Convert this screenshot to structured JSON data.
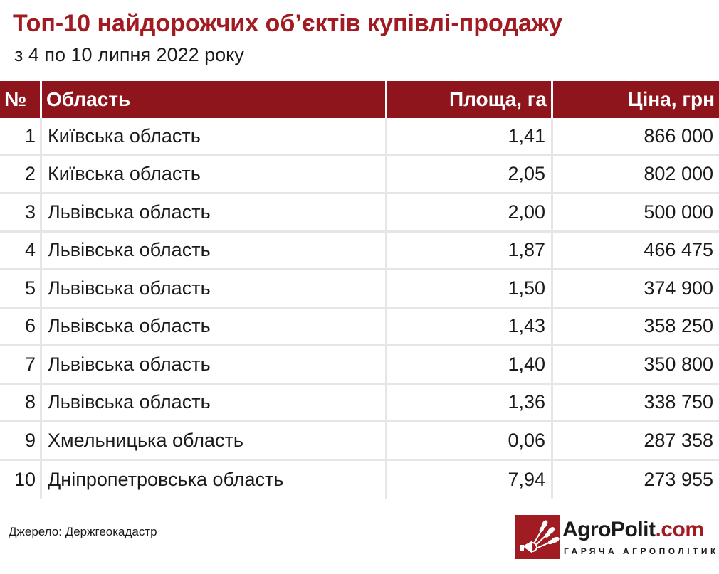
{
  "header": {
    "title": "Топ-10 найдорожчих об’єктів купівлі-продажу",
    "subtitle": "з 4 по 10 липня 2022 року"
  },
  "table": {
    "columns": [
      "№",
      "Область",
      "Площа, га",
      "Ціна, грн"
    ],
    "rows": [
      {
        "no": "1",
        "region": "Київська область",
        "area": "1,41",
        "price": "866 000"
      },
      {
        "no": "2",
        "region": "Київська область",
        "area": "2,05",
        "price": "802 000"
      },
      {
        "no": "3",
        "region": "Львівська область",
        "area": "2,00",
        "price": "500 000"
      },
      {
        "no": "4",
        "region": "Львівська область",
        "area": "1,87",
        "price": "466 475"
      },
      {
        "no": "5",
        "region": "Львівська область",
        "area": "1,50",
        "price": "374 900"
      },
      {
        "no": "6",
        "region": "Львівська область",
        "area": "1,43",
        "price": "358 250"
      },
      {
        "no": "7",
        "region": "Львівська область",
        "area": "1,40",
        "price": "350 800"
      },
      {
        "no": "8",
        "region": "Львівська область",
        "area": "1,36",
        "price": "338 750"
      },
      {
        "no": "9",
        "region": "Хмельницька область",
        "area": "0,06",
        "price": "287 358"
      },
      {
        "no": "10",
        "region": "Дніпропетровська область",
        "area": "7,94",
        "price": "273 955"
      }
    ]
  },
  "footer": {
    "source": "Джерело: Держгеокадастр",
    "logo_name_part1": "AgroPolit",
    "logo_name_part2": ".com",
    "logo_tagline": "ГАРЯЧА АГРОПОЛІТИКА"
  },
  "colors": {
    "accent": "#a11b22",
    "header_bg": "#8e151b",
    "grid": "#e6e6e6"
  }
}
